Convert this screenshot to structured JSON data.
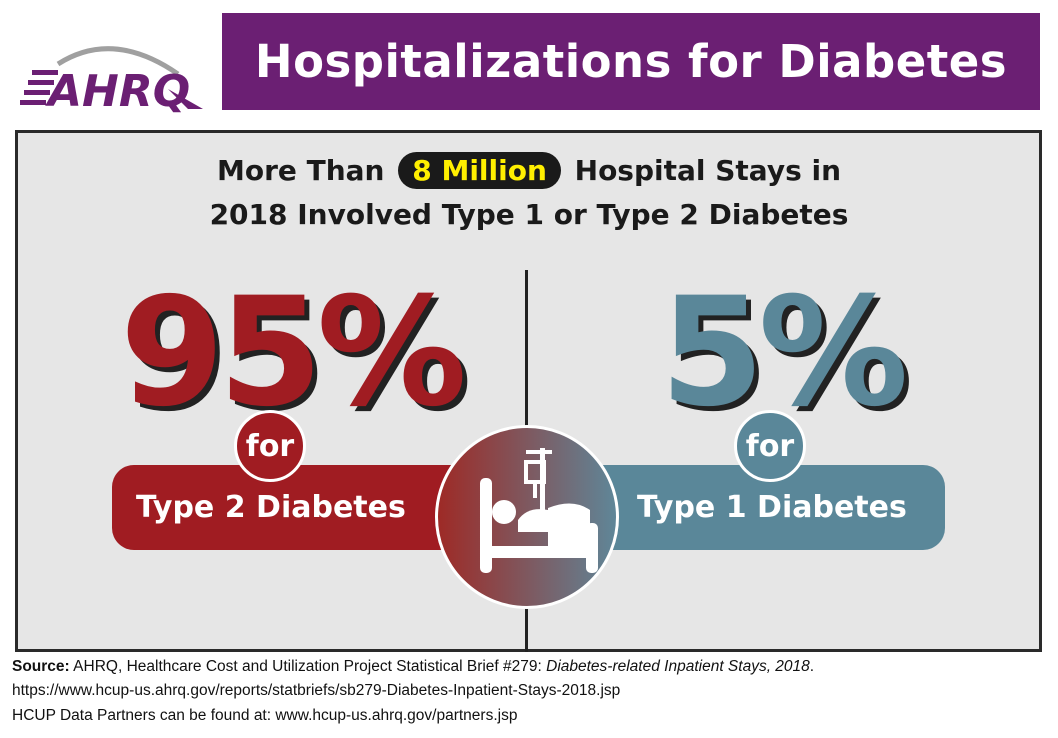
{
  "logo": {
    "text": "AHRQ",
    "colors": {
      "purple": "#6b1f73",
      "arc": "#a0a0a0"
    }
  },
  "header": {
    "title": "Hospitalizations for Diabetes"
  },
  "headline": {
    "line1_pre": "More Than",
    "highlight": "8 Million",
    "line1_post": "Hospital Stays in",
    "line2": "2018 Involved Type 1 or Type 2 Diabetes"
  },
  "type2": {
    "percent": "95%",
    "for": "for",
    "label": "Type 2 Diabetes",
    "color": "#a01c22"
  },
  "type1": {
    "percent": "5%",
    "for": "for",
    "label": "Type 1 Diabetes",
    "color": "#5a8799"
  },
  "center_icon": "hospital-bed-icon",
  "footer": {
    "source_label": "Source:",
    "source_text": " AHRQ, Healthcare Cost and Utilization Project Statistical Brief #279: ",
    "source_title": "Diabetes-related Inpatient Stays, 2018",
    "source_end": ".",
    "url": "https://www.hcup-us.ahrq.gov/reports/statbriefs/sb279-Diabetes-Inpatient-Stays-2018.jsp",
    "partners": "HCUP Data Partners can be found at: www.hcup-us.ahrq.gov/partners.jsp"
  }
}
